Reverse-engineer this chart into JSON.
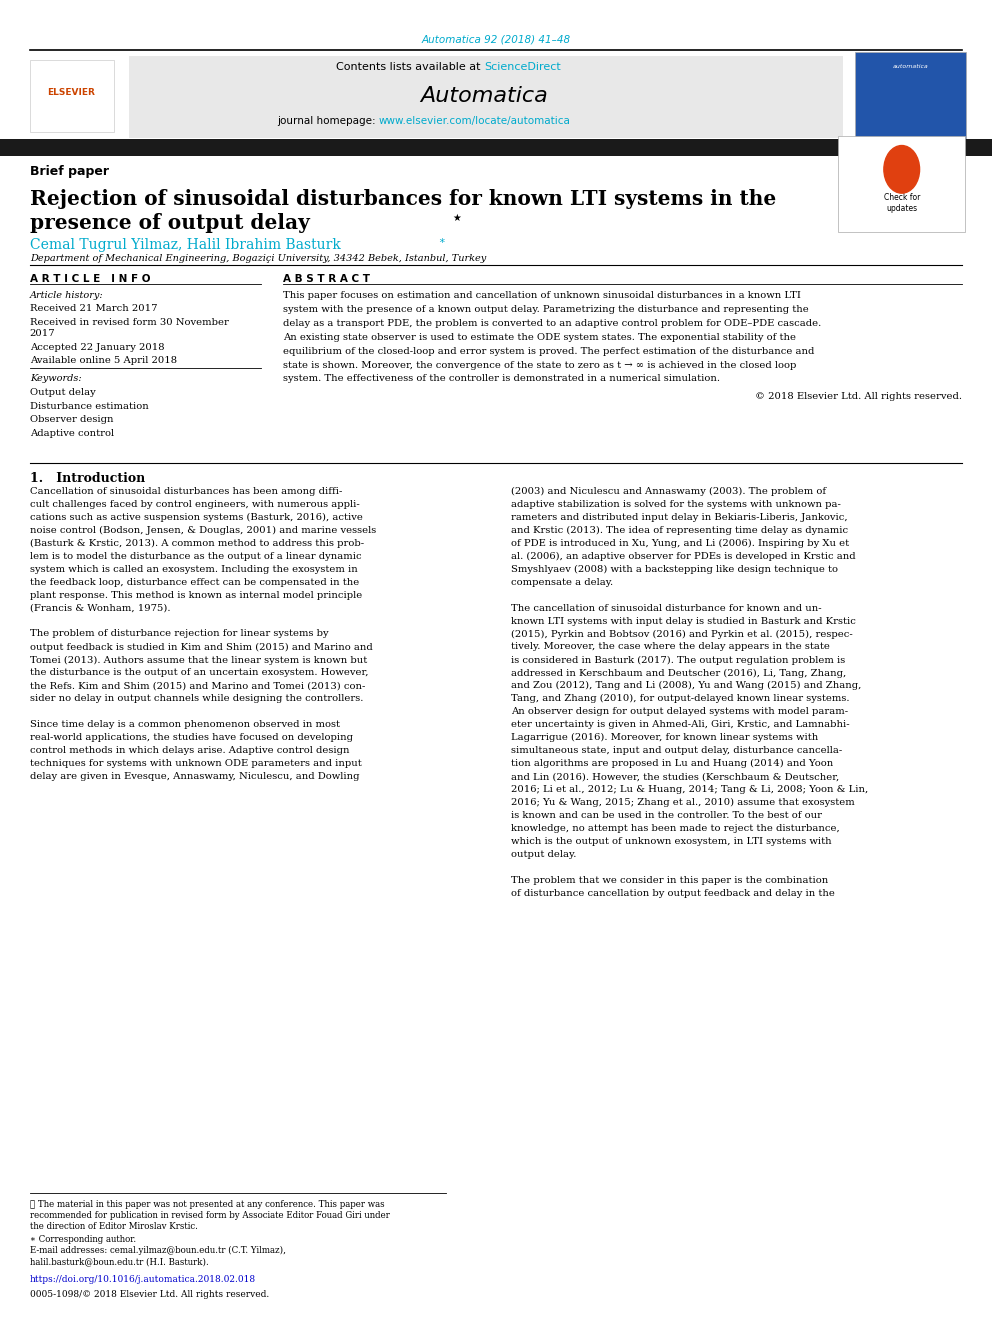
{
  "page_width": 9.92,
  "page_height": 13.23,
  "background_color": "#ffffff",
  "header_journal_text": "Automatica 92 (2018) 41–48",
  "header_journal_color": "#00aacc",
  "contents_text": "Contents lists available at ",
  "sciencedirect_text": "ScienceDirect",
  "sciencedirect_color": "#00aacc",
  "journal_homepage_text": "journal homepage: ",
  "journal_homepage_url": "www.elsevier.com/locate/automatica",
  "journal_homepage_url_color": "#00aacc",
  "header_bg_color": "#e8e8e8",
  "black_bar_color": "#1a1a1a",
  "brief_paper_text": "Brief paper",
  "authors_color": "#00aacc",
  "affiliation_text": "Department of Mechanical Engineering, Bogaziçi University, 34342 Bebek, Istanbul, Turkey",
  "article_info_header": "A R T I C L E   I N F O",
  "abstract_header": "A B S T R A C T",
  "article_history_label": "Article history:",
  "received_text": "Received 21 March 2017",
  "accepted_text": "Accepted 22 January 2018",
  "available_text": "Available online 5 April 2018",
  "keywords_label": "Keywords:",
  "keywords": [
    "Output delay",
    "Disturbance estimation",
    "Observer design",
    "Adaptive control"
  ],
  "copyright_text": "© 2018 Elsevier Ltd. All rights reserved.",
  "intro_header": "1.   Introduction",
  "doi_text": "https://doi.org/10.1016/j.automatica.2018.02.018",
  "doi_color": "#0000cc",
  "issn_text": "0005-1098/© 2018 Elsevier Ltd. All rights reserved.",
  "abs_lines": [
    "This paper focuses on estimation and cancellation of unknown sinusoidal disturbances in a known LTI",
    "system with the presence of a known output delay. Parametrizing the disturbance and representing the",
    "delay as a transport PDE, the problem is converted to an adaptive control problem for ODE–PDE cascade.",
    "An existing state observer is used to estimate the ODE system states. The exponential stability of the",
    "equilibrium of the closed-loop and error system is proved. The perfect estimation of the disturbance and",
    "state is shown. Moreover, the convergence of the state to zero as t → ∞ is achieved in the closed loop",
    "system. The effectiveness of the controller is demonstrated in a numerical simulation."
  ],
  "intro_col1_lines": [
    "Cancellation of sinusoidal disturbances has been among diffi-",
    "cult challenges faced by control engineers, with numerous appli-",
    "cations such as active suspension systems (Basturk, 2016), active",
    "noise control (Bodson, Jensen, & Douglas, 2001) and marine vessels",
    "(Basturk & Krstic, 2013). A common method to address this prob-",
    "lem is to model the disturbance as the output of a linear dynamic",
    "system which is called an exosystem. Including the exosystem in",
    "the feedback loop, disturbance effect can be compensated in the",
    "plant response. This method is known as internal model principle",
    "(Francis & Wonham, 1975).",
    "",
    "The problem of disturbance rejection for linear systems by",
    "output feedback is studied in Kim and Shim (2015) and Marino and",
    "Tomei (2013). Authors assume that the linear system is known but",
    "the disturbance is the output of an uncertain exosystem. However,",
    "the Refs. Kim and Shim (2015) and Marino and Tomei (2013) con-",
    "sider no delay in output channels while designing the controllers.",
    "",
    "Since time delay is a common phenomenon observed in most",
    "real-world applications, the studies have focused on developing",
    "control methods in which delays arise. Adaptive control design",
    "techniques for systems with unknown ODE parameters and input",
    "delay are given in Evesque, Annaswamy, Niculescu, and Dowling"
  ],
  "intro_col2_lines": [
    "(2003) and Niculescu and Annaswamy (2003). The problem of",
    "adaptive stabilization is solved for the systems with unknown pa-",
    "rameters and distributed input delay in Bekiaris-Liberis, Jankovic,",
    "and Krstic (2013). The idea of representing time delay as dynamic",
    "of PDE is introduced in Xu, Yung, and Li (2006). Inspiring by Xu et",
    "al. (2006), an adaptive observer for PDEs is developed in Krstic and",
    "Smyshlyaev (2008) with a backstepping like design technique to",
    "compensate a delay.",
    "",
    "The cancellation of sinusoidal disturbance for known and un-",
    "known LTI systems with input delay is studied in Basturk and Krstic",
    "(2015), Pyrkin and Bobtsov (2016) and Pyrkin et al. (2015), respec-",
    "tively. Moreover, the case where the delay appears in the state",
    "is considered in Basturk (2017). The output regulation problem is",
    "addressed in Kerschbaum and Deutscher (2016), Li, Tang, Zhang,",
    "and Zou (2012), Tang and Li (2008), Yu and Wang (2015) and Zhang,",
    "Tang, and Zhang (2010), for output-delayed known linear systems.",
    "An observer design for output delayed systems with model param-",
    "eter uncertainty is given in Ahmed-Ali, Giri, Krstic, and Lamnabhi-",
    "Lagarrigue (2016). Moreover, for known linear systems with",
    "simultaneous state, input and output delay, disturbance cancella-",
    "tion algorithms are proposed in Lu and Huang (2014) and Yoon",
    "and Lin (2016). However, the studies (Kerschbaum & Deutscher,",
    "2016; Li et al., 2012; Lu & Huang, 2014; Tang & Li, 2008; Yoon & Lin,",
    "2016; Yu & Wang, 2015; Zhang et al., 2010) assume that exosystem",
    "is known and can be used in the controller. To the best of our",
    "knowledge, no attempt has been made to reject the disturbance,",
    "which is the output of unknown exosystem, in LTI systems with",
    "output delay.",
    "",
    "The problem that we consider in this paper is the combination",
    "of disturbance cancellation by output feedback and delay in the"
  ],
  "fn_lines": [
    "★ The material in this paper was not presented at any conference. This paper was",
    "recommended for publication in revised form by Associate Editor Fouad Giri under",
    "the direction of Editor Miroslav Krstic."
  ],
  "email_lines": [
    "E-mail addresses: cemal.yilmaz@boun.edu.tr (C.T. Yilmaz),",
    "halil.basturk@boun.edu.tr (H.I. Basturk)."
  ]
}
